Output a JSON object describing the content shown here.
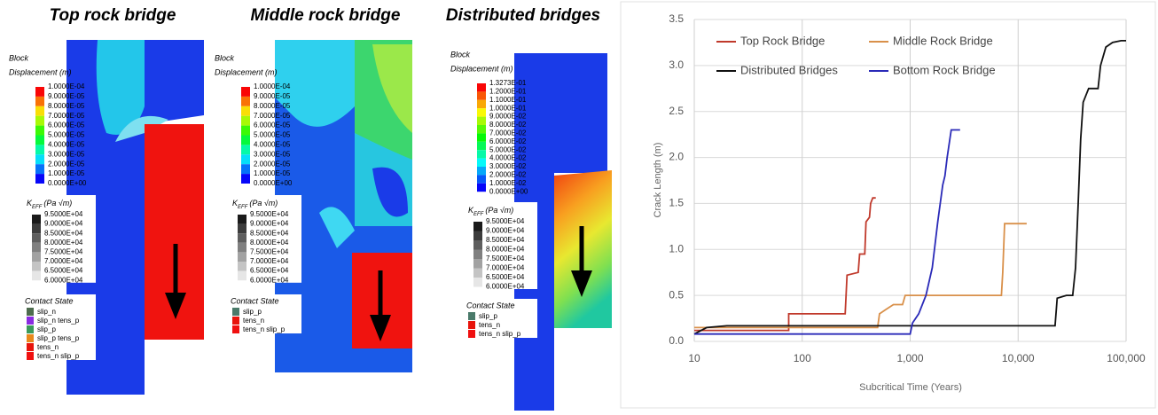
{
  "panels": [
    {
      "title": "Top rock bridge",
      "displacement": {
        "title_1": "Block",
        "title_2": "Displacement (m)",
        "labels": [
          "1.0000E-04",
          "9.0000E-05",
          "8.0000E-05",
          "7.0000E-05",
          "6.0000E-05",
          "5.0000E-05",
          "4.0000E-05",
          "3.0000E-05",
          "2.0000E-05",
          "1.0000E-05",
          "0.0000E+00"
        ]
      },
      "keff": {
        "symbol": "K",
        "subscript": "EFF",
        "unit": "(Pa √m)",
        "labels": [
          "9.5000E+04",
          "9.0000E+04",
          "8.5000E+04",
          "8.0000E+04",
          "7.5000E+04",
          "7.0000E+04",
          "6.5000E+04",
          "6.0000E+04"
        ]
      },
      "contact": {
        "title": "Contact State",
        "items": [
          {
            "label": "slip_n",
            "color": "#4d6b4d"
          },
          {
            "label": "slip_n tens_p",
            "color": "#8a2be2"
          },
          {
            "label": "slip_p",
            "color": "#3a9a5a"
          },
          {
            "label": "slip_p tens_p",
            "color": "#e8891c"
          },
          {
            "label": "tens_n",
            "color": "#e8140c"
          },
          {
            "label": "tens_n slip_p",
            "color": "#f01010"
          }
        ]
      }
    },
    {
      "title": "Middle rock bridge",
      "displacement": {
        "title_1": "Block",
        "title_2": "Displacement (m)",
        "labels": [
          "1.0000E-04",
          "9.0000E-05",
          "8.0000E-05",
          "7.0000E-05",
          "6.0000E-05",
          "5.0000E-05",
          "4.0000E-05",
          "3.0000E-05",
          "2.0000E-05",
          "1.0000E-05",
          "0.0000E+00"
        ]
      },
      "keff": {
        "symbol": "K",
        "subscript": "EFF",
        "unit": "(Pa √m)",
        "labels": [
          "9.5000E+04",
          "9.0000E+04",
          "8.5000E+04",
          "8.0000E+04",
          "7.5000E+04",
          "7.0000E+04",
          "6.5000E+04",
          "6.0000E+04"
        ]
      },
      "contact": {
        "title": "Contact State",
        "items": [
          {
            "label": "slip_p",
            "color": "#4a7a6a"
          },
          {
            "label": "tens_n",
            "color": "#e8140c"
          },
          {
            "label": "tens_n slip_p",
            "color": "#f01010"
          }
        ]
      }
    },
    {
      "title": "Distributed bridges",
      "displacement": {
        "title_1": "Block",
        "title_2": "Displacement (m)",
        "labels": [
          "1.3273E-01",
          "1.2000E-01",
          "1.1000E-01",
          "1.0000E-01",
          "9.0000E-02",
          "8.0000E-02",
          "7.0000E-02",
          "6.0000E-02",
          "5.0000E-02",
          "4.0000E-02",
          "3.0000E-02",
          "2.0000E-02",
          "1.0000E-02",
          "0.0000E+00"
        ]
      },
      "keff": {
        "symbol": "K",
        "subscript": "EFF",
        "unit": "(Pa √m)",
        "labels": [
          "9.5000E+04",
          "9.0000E+04",
          "8.5000E+04",
          "8.0000E+04",
          "7.5000E+04",
          "7.0000E+04",
          "6.5000E+04",
          "6.0000E+04"
        ]
      },
      "contact": {
        "title": "Contact State",
        "items": [
          {
            "label": "slip_p",
            "color": "#4a7a6a"
          },
          {
            "label": "tens_n",
            "color": "#e8140c"
          },
          {
            "label": "tens_n slip_p",
            "color": "#f01010"
          }
        ]
      }
    }
  ],
  "chart_data": {
    "type": "line",
    "x_label": "Subcritical Time (Years)",
    "y_label": "Crack Length (m)",
    "x_scale": "log",
    "xlim": [
      10,
      100000
    ],
    "xticks": [
      10,
      100,
      {
        "value": 1000,
        "label": "1,000"
      },
      {
        "value": 10000,
        "label": "10,000"
      },
      {
        "value": 100000,
        "label": "100,000"
      }
    ],
    "ylim": [
      0,
      3.5
    ],
    "yticks": [
      {
        "value": 0,
        "label": "0.0"
      },
      0.5,
      {
        "value": 1,
        "label": "1.0"
      },
      1.5,
      {
        "value": 2,
        "label": "2.0"
      },
      2.5,
      {
        "value": 3,
        "label": "3.0"
      },
      3.5
    ],
    "grid": true,
    "legend": "top",
    "series": [
      {
        "name": "Top Rock Bridge",
        "color": "#c0392b",
        "x": [
          10,
          75,
          75,
          250,
          260,
          330,
          340,
          380,
          390,
          420,
          430,
          450,
          480
        ],
        "values": [
          0.12,
          0.12,
          0.3,
          0.3,
          0.72,
          0.75,
          0.95,
          0.95,
          1.3,
          1.35,
          1.5,
          1.56,
          1.56
        ]
      },
      {
        "name": "Middle Rock Bridge",
        "color": "#d9904a",
        "x": [
          10,
          500,
          520,
          600,
          700,
          850,
          900,
          7000,
          7200,
          7500,
          12000
        ],
        "values": [
          0.15,
          0.15,
          0.3,
          0.35,
          0.4,
          0.4,
          0.5,
          0.5,
          0.75,
          1.28,
          1.28
        ]
      },
      {
        "name": "Distributed Bridges",
        "color": "#111111",
        "x": [
          10,
          13,
          20,
          22000,
          23000,
          28000,
          32000,
          34000,
          36000,
          38000,
          40000,
          45000,
          55000,
          58000,
          65000,
          75000,
          90000,
          100000
        ],
        "values": [
          0.08,
          0.15,
          0.17,
          0.17,
          0.47,
          0.5,
          0.5,
          0.8,
          1.5,
          2.2,
          2.6,
          2.75,
          2.75,
          3.0,
          3.2,
          3.25,
          3.27,
          3.27
        ]
      },
      {
        "name": "Bottom Rock Bridge",
        "color": "#2a2ab8",
        "x": [
          10,
          1000,
          1050,
          1200,
          1400,
          1600,
          1800,
          2000,
          2100,
          2200,
          2400,
          2900
        ],
        "values": [
          0.08,
          0.08,
          0.2,
          0.3,
          0.5,
          0.8,
          1.3,
          1.7,
          1.8,
          2.0,
          2.3,
          2.3
        ]
      }
    ]
  }
}
